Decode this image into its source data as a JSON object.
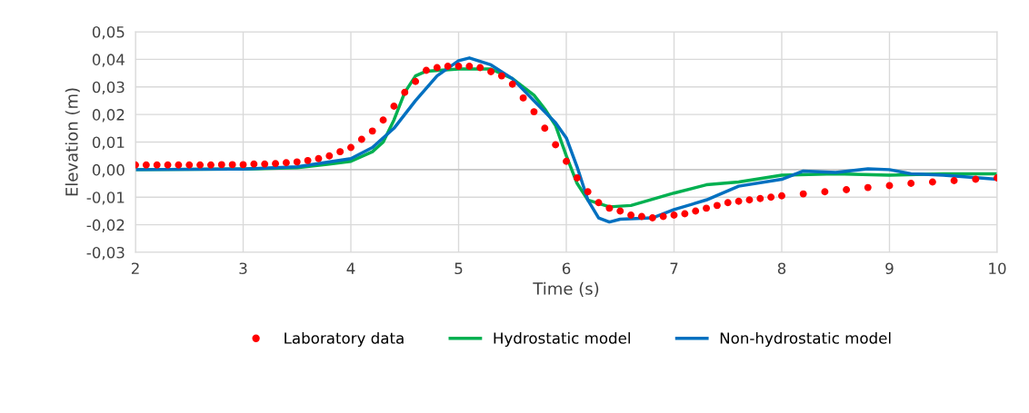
{
  "chart_data": {
    "type": "line",
    "xlabel": "Time (s)",
    "ylabel": "Elevation (m)",
    "xlim": [
      2,
      10
    ],
    "ylim": [
      -0.03,
      0.05
    ],
    "xticks": [
      2,
      3,
      4,
      5,
      6,
      7,
      8,
      9,
      10
    ],
    "yticks": [
      {
        "value": -0.03,
        "label": "-0,03"
      },
      {
        "value": -0.02,
        "label": "-0,02"
      },
      {
        "value": -0.01,
        "label": "-0,01"
      },
      {
        "value": 0,
        "label": "0,00"
      },
      {
        "value": 0.01,
        "label": "0,01"
      },
      {
        "value": 0.02,
        "label": "0,02"
      },
      {
        "value": 0.03,
        "label": "0,03"
      },
      {
        "value": 0.04,
        "label": "0,04"
      },
      {
        "value": 0.05,
        "label": "0,05"
      }
    ],
    "grid": true,
    "legend": "bottom",
    "series": [
      {
        "name": "Laboratory data",
        "type": "scatter",
        "marker": "circle",
        "color": "#ff0000",
        "x": [
          2.0,
          2.1,
          2.2,
          2.3,
          2.4,
          2.5,
          2.6,
          2.7,
          2.8,
          2.9,
          3.0,
          3.1,
          3.2,
          3.3,
          3.4,
          3.5,
          3.6,
          3.7,
          3.8,
          3.9,
          4.0,
          4.1,
          4.2,
          4.3,
          4.4,
          4.5,
          4.6,
          4.7,
          4.8,
          4.9,
          5.0,
          5.1,
          5.2,
          5.3,
          5.4,
          5.5,
          5.6,
          5.7,
          5.8,
          5.9,
          6.0,
          6.1,
          6.2,
          6.3,
          6.4,
          6.5,
          6.6,
          6.7,
          6.8,
          6.9,
          7.0,
          7.1,
          7.2,
          7.3,
          7.4,
          7.5,
          7.6,
          7.7,
          7.8,
          7.9,
          8.0,
          8.2,
          8.4,
          8.6,
          8.8,
          9.0,
          9.2,
          9.4,
          9.6,
          9.8,
          10.0
        ],
        "values": [
          0.0017,
          0.0017,
          0.0017,
          0.0017,
          0.0017,
          0.0017,
          0.0017,
          0.0017,
          0.0018,
          0.0018,
          0.0018,
          0.002,
          0.002,
          0.0022,
          0.0025,
          0.0028,
          0.0033,
          0.004,
          0.005,
          0.0065,
          0.008,
          0.011,
          0.014,
          0.018,
          0.023,
          0.028,
          0.032,
          0.036,
          0.037,
          0.0375,
          0.0375,
          0.0375,
          0.037,
          0.0355,
          0.034,
          0.031,
          0.026,
          0.021,
          0.015,
          0.009,
          0.003,
          -0.003,
          -0.008,
          -0.012,
          -0.014,
          -0.015,
          -0.0165,
          -0.017,
          -0.0175,
          -0.017,
          -0.0165,
          -0.016,
          -0.015,
          -0.014,
          -0.013,
          -0.012,
          -0.0115,
          -0.011,
          -0.0105,
          -0.01,
          -0.0095,
          -0.0088,
          -0.008,
          -0.0073,
          -0.0065,
          -0.0058,
          -0.005,
          -0.0045,
          -0.004,
          -0.0035,
          -0.003
        ]
      },
      {
        "name": "Hydrostatic model",
        "color": "#00b050",
        "x": [
          2.0,
          3.0,
          3.5,
          3.8,
          4.0,
          4.2,
          4.3,
          4.4,
          4.5,
          4.6,
          4.7,
          5.0,
          5.3,
          5.5,
          5.7,
          5.8,
          5.9,
          6.0,
          6.1,
          6.2,
          6.4,
          6.6,
          7.0,
          7.3,
          7.6,
          8.0,
          8.5,
          9.0,
          9.5,
          10.0
        ],
        "values": [
          0,
          0.0002,
          0.0007,
          0.002,
          0.003,
          0.0065,
          0.01,
          0.018,
          0.028,
          0.034,
          0.0357,
          0.0365,
          0.0365,
          0.033,
          0.027,
          0.022,
          0.016,
          0.005,
          -0.005,
          -0.011,
          -0.0135,
          -0.013,
          -0.0085,
          -0.0055,
          -0.0045,
          -0.002,
          -0.0015,
          -0.002,
          -0.0015,
          -0.0015
        ]
      },
      {
        "name": "Non-hydrostatic model",
        "color": "#0070c0",
        "x": [
          2.0,
          3.0,
          3.5,
          4.0,
          4.2,
          4.4,
          4.6,
          4.8,
          5.0,
          5.1,
          5.3,
          5.5,
          5.7,
          5.9,
          6.0,
          6.1,
          6.2,
          6.3,
          6.4,
          6.5,
          6.8,
          7.0,
          7.3,
          7.6,
          8.0,
          8.2,
          8.5,
          8.8,
          9.0,
          9.2,
          9.5,
          10.0
        ],
        "values": [
          0,
          0.0002,
          0.001,
          0.004,
          0.008,
          0.015,
          0.025,
          0.034,
          0.0395,
          0.0405,
          0.038,
          0.033,
          0.025,
          0.017,
          0.0115,
          0.001,
          -0.011,
          -0.0175,
          -0.019,
          -0.018,
          -0.0175,
          -0.0145,
          -0.011,
          -0.006,
          -0.0035,
          -0.0005,
          -0.001,
          0.0003,
          0,
          -0.0015,
          -0.002,
          -0.0035
        ]
      }
    ]
  }
}
